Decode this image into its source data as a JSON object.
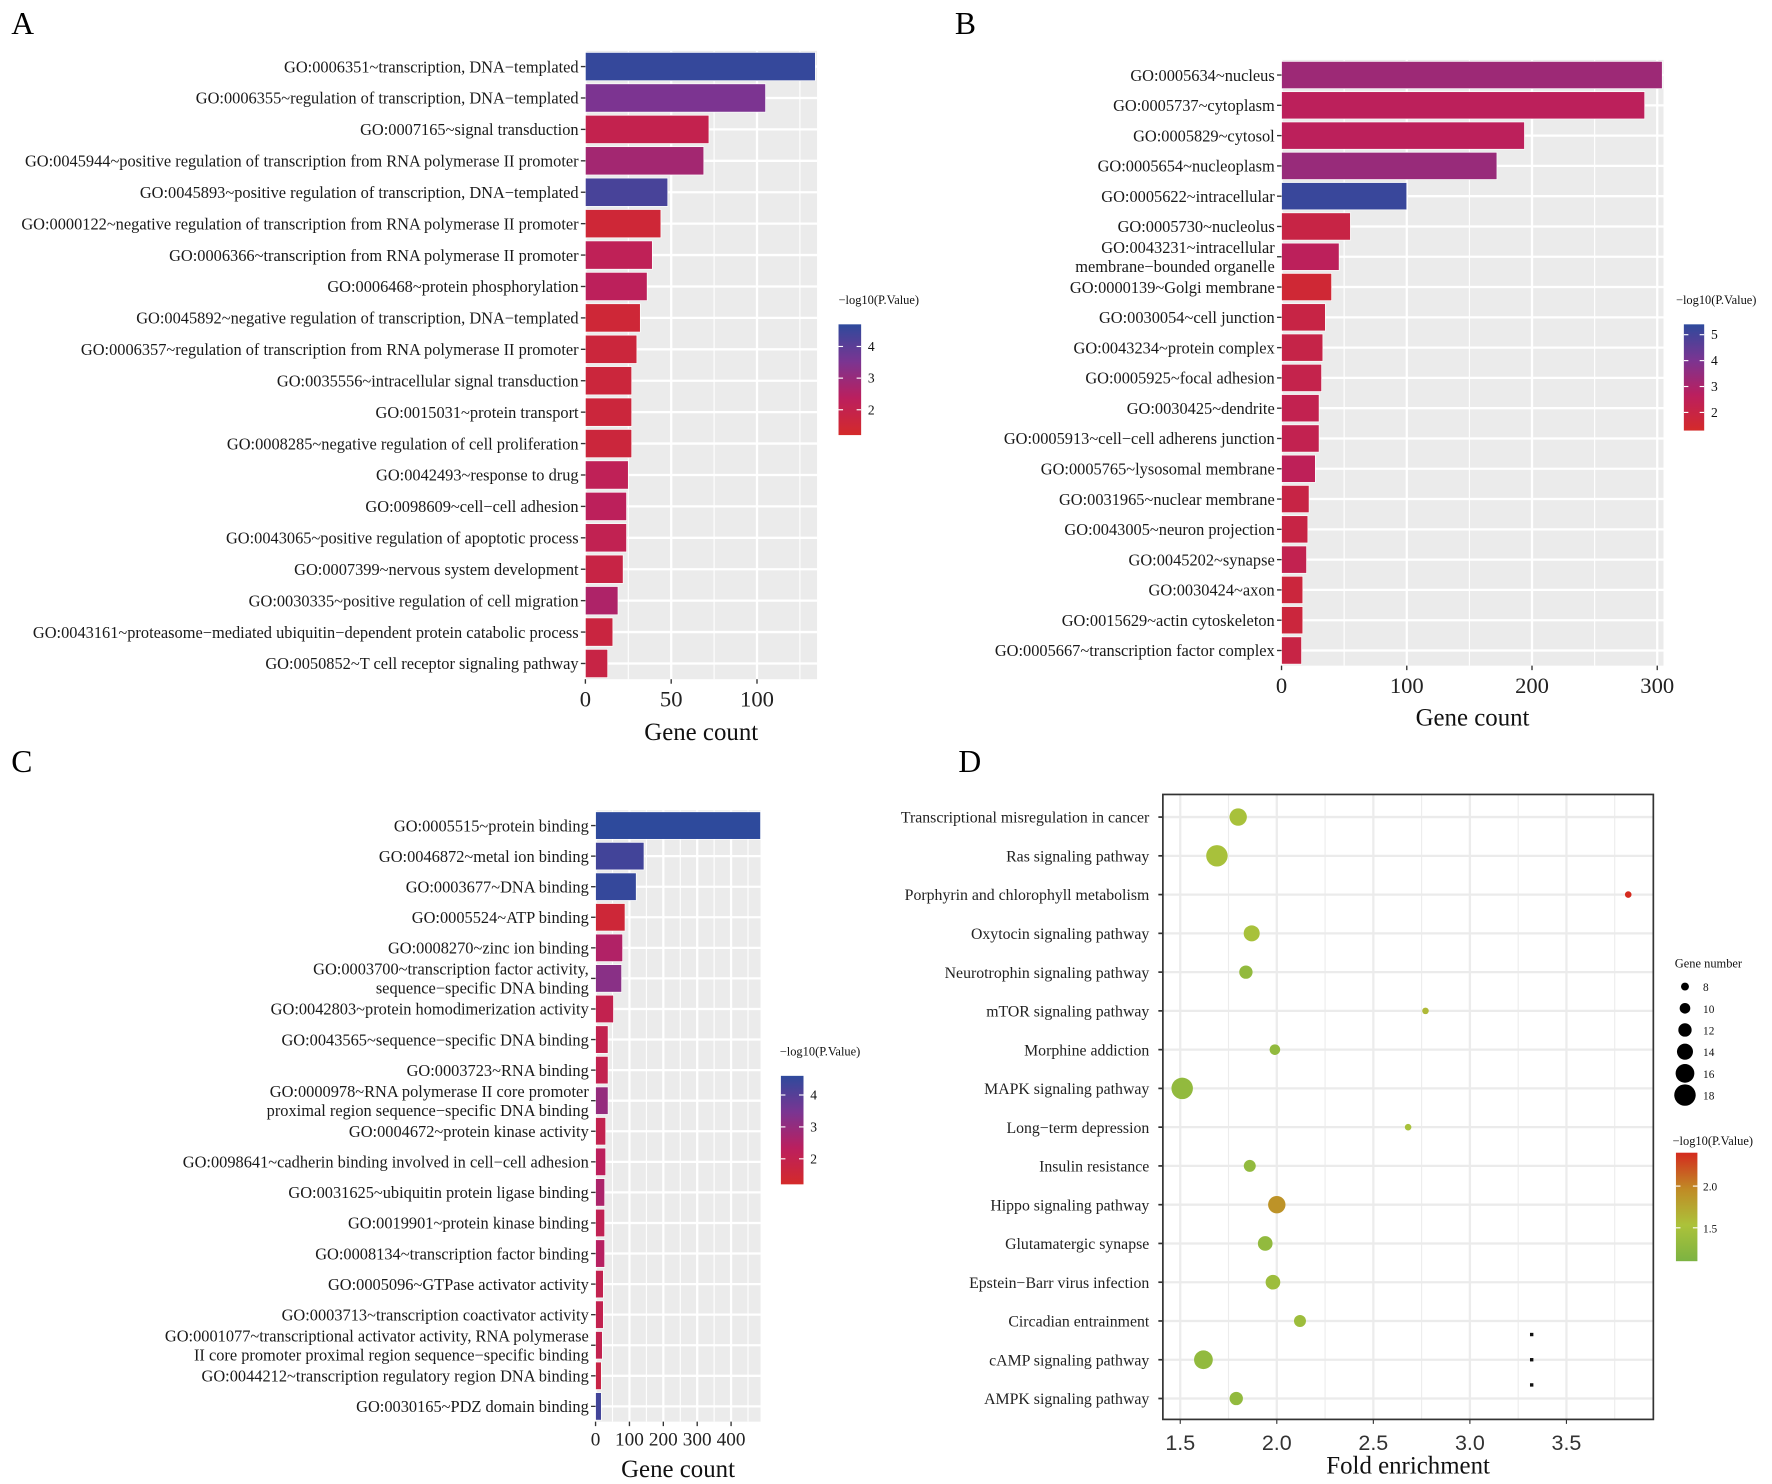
{
  "panel_letters": [
    "A",
    "B",
    "C",
    "D"
  ],
  "chart_data": [
    {
      "panel": "A",
      "type": "bar",
      "orientation": "horizontal",
      "xlabel": "Gene count",
      "xlim": [
        0,
        135
      ],
      "xticks": [
        0,
        50,
        100
      ],
      "legend_title": "−log10(P.Value)",
      "legend_ticks": [
        4,
        3,
        2
      ],
      "color_range": [
        1.2,
        4.7
      ],
      "categories": [
        [
          "GO:0006351~transcription, DNA−templated"
        ],
        [
          "GO:0006355~regulation of transcription, DNA−templated"
        ],
        [
          "GO:0007165~signal transduction"
        ],
        [
          "GO:0045944~positive regulation of transcription from RNA polymerase II promoter"
        ],
        [
          "GO:0045893~positive regulation of transcription, DNA−templated"
        ],
        [
          "GO:0000122~negative regulation of transcription from RNA polymerase II promoter"
        ],
        [
          "GO:0006366~transcription from RNA polymerase II promoter"
        ],
        [
          "GO:0006468~protein phosphorylation"
        ],
        [
          "GO:0045892~negative regulation of transcription, DNA−templated"
        ],
        [
          "GO:0006357~regulation of transcription from RNA polymerase II promoter"
        ],
        [
          "GO:0035556~intracellular signal transduction"
        ],
        [
          "GO:0015031~protein transport"
        ],
        [
          "GO:0008285~negative regulation of cell proliferation"
        ],
        [
          "GO:0042493~response to drug"
        ],
        [
          "GO:0098609~cell−cell adhesion"
        ],
        [
          "GO:0043065~positive regulation of apoptotic process"
        ],
        [
          "GO:0007399~nervous system development"
        ],
        [
          "GO:0030335~positive regulation of cell migration"
        ],
        [
          "GO:0043161~proteasome−mediated ubiquitin−dependent protein catabolic process"
        ],
        [
          "GO:0050852~T cell receptor signaling pathway"
        ]
      ],
      "values": [
        134,
        105,
        72,
        69,
        48,
        44,
        39,
        36,
        32,
        30,
        27,
        27,
        27,
        25,
        24,
        24,
        22,
        19,
        16,
        13
      ],
      "neglog10p": [
        4.6,
        3.5,
        2.0,
        2.8,
        4.3,
        1.5,
        2.2,
        2.3,
        1.5,
        1.6,
        1.6,
        1.6,
        1.6,
        2.2,
        2.3,
        2.1,
        1.8,
        2.6,
        1.7,
        1.8
      ]
    },
    {
      "panel": "B",
      "type": "bar",
      "orientation": "horizontal",
      "xlabel": "Gene count",
      "xlim": [
        0,
        305
      ],
      "xticks": [
        0,
        100,
        200,
        300
      ],
      "legend_title": "−log10(P.Value)",
      "legend_ticks": [
        5,
        4,
        3,
        2
      ],
      "color_range": [
        1.3,
        5.4
      ],
      "categories": [
        [
          "GO:0005634~nucleus"
        ],
        [
          "GO:0005737~cytoplasm"
        ],
        [
          "GO:0005829~cytosol"
        ],
        [
          "GO:0005654~nucleoplasm"
        ],
        [
          "GO:0005622~intracellular"
        ],
        [
          "GO:0005730~nucleolus"
        ],
        [
          "GO:0043231~intracellular",
          "membrane−bounded organelle"
        ],
        [
          "GO:0000139~Golgi membrane"
        ],
        [
          "GO:0030054~cell junction"
        ],
        [
          "GO:0043234~protein complex"
        ],
        [
          "GO:0005925~focal adhesion"
        ],
        [
          "GO:0030425~dendrite"
        ],
        [
          "GO:0005913~cell−cell adherens junction"
        ],
        [
          "GO:0005765~lysosomal membrane"
        ],
        [
          "GO:0031965~nuclear membrane"
        ],
        [
          "GO:0043005~neuron projection"
        ],
        [
          "GO:0045202~synapse"
        ],
        [
          "GO:0030424~axon"
        ],
        [
          "GO:0015629~actin cytoskeleton"
        ],
        [
          "GO:0005667~transcription factor complex"
        ]
      ],
      "values": [
        304,
        290,
        194,
        172,
        100,
        55,
        46,
        40,
        35,
        33,
        32,
        30,
        30,
        27,
        22,
        21,
        20,
        17,
        17,
        16
      ],
      "neglog10p": [
        3.3,
        2.6,
        2.6,
        3.4,
        5.2,
        2.0,
        2.6,
        1.6,
        2.0,
        2.1,
        2.2,
        2.3,
        2.3,
        2.5,
        2.0,
        2.0,
        2.3,
        1.8,
        1.8,
        2.0
      ]
    },
    {
      "panel": "C",
      "type": "bar",
      "orientation": "horizontal",
      "xlabel": "Gene count",
      "xlim": [
        0,
        487
      ],
      "xticks": [
        0,
        100,
        200,
        300,
        400
      ],
      "legend_title": "−log10(P.Value)",
      "legend_ticks": [
        4,
        3,
        2
      ],
      "color_range": [
        1.2,
        4.6
      ],
      "categories": [
        [
          "GO:0005515~protein binding"
        ],
        [
          "GO:0046872~metal ion binding"
        ],
        [
          "GO:0003677~DNA binding"
        ],
        [
          "GO:0005524~ATP binding"
        ],
        [
          "GO:0008270~zinc ion binding"
        ],
        [
          "GO:0003700~transcription factor activity,",
          "sequence−specific DNA binding"
        ],
        [
          "GO:0042803~protein homodimerization activity"
        ],
        [
          "GO:0043565~sequence−specific DNA binding"
        ],
        [
          "GO:0003723~RNA binding"
        ],
        [
          "GO:0000978~RNA polymerase II core promoter",
          "proximal region sequence−specific DNA binding"
        ],
        [
          "GO:0004672~protein kinase activity"
        ],
        [
          "GO:0098641~cadherin binding involved in cell−cell adhesion"
        ],
        [
          "GO:0031625~ubiquitin protein ligase binding"
        ],
        [
          "GO:0019901~protein kinase binding"
        ],
        [
          "GO:0008134~transcription factor binding"
        ],
        [
          "GO:0005096~GTPase activator activity"
        ],
        [
          "GO:0003713~transcription coactivator activity"
        ],
        [
          "GO:0001077~transcriptional activator activity, RNA polymerase",
          "II core promoter proximal region sequence−specific binding"
        ],
        [
          "GO:0044212~transcription regulatory region DNA binding"
        ],
        [
          "GO:0030165~PDZ domain binding"
        ]
      ],
      "values": [
        487,
        143,
        120,
        87,
        80,
        77,
        53,
        37,
        37,
        37,
        30,
        30,
        27,
        27,
        27,
        23,
        23,
        20,
        17,
        17
      ],
      "neglog10p": [
        4.6,
        4.3,
        4.5,
        1.5,
        2.5,
        3.2,
        2.0,
        2.0,
        2.0,
        3.0,
        2.0,
        2.3,
        2.6,
        2.1,
        2.4,
        2.0,
        2.0,
        2.0,
        1.8,
        4.3
      ]
    },
    {
      "panel": "D",
      "type": "scatter",
      "xlabel": "Fold enrichment",
      "xlim": [
        1.41,
        3.95
      ],
      "xticks": [
        1.5,
        2.0,
        2.5,
        3.0,
        3.5
      ],
      "size_legend_title": "Gene number",
      "size_legend_values": [
        8,
        10,
        12,
        14,
        16,
        18
      ],
      "color_legend_title": "−log10(P.Value)",
      "color_legend_ticks": [
        2.0,
        1.5
      ],
      "color_range": [
        1.1,
        2.4
      ],
      "categories": [
        "Transcriptional misregulation in cancer",
        "Ras signaling pathway",
        "Porphyrin and chlorophyll metabolism",
        "Oxytocin signaling pathway",
        "Neurotrophin signaling pathway",
        "mTOR signaling pathway",
        "Morphine addiction",
        "MAPK signaling pathway",
        "Long−term depression",
        "Insulin resistance",
        "Hippo signaling pathway",
        "Glutamatergic synapse",
        "Epstein−Barr virus infection",
        "Circadian entrainment",
        "cAMP signaling pathway",
        "AMPK signaling pathway"
      ],
      "fold_enrichment": [
        1.8,
        1.69,
        3.82,
        1.87,
        1.84,
        2.77,
        1.99,
        1.51,
        2.68,
        1.86,
        2.0,
        1.94,
        1.98,
        2.12,
        1.62,
        1.79
      ],
      "gene_number": [
        15,
        18,
        7,
        14,
        12,
        7,
        10,
        18,
        7,
        11,
        15,
        13,
        13,
        11,
        16,
        12
      ],
      "neglog10p": [
        1.5,
        1.5,
        2.4,
        1.5,
        1.3,
        1.6,
        1.3,
        1.3,
        1.5,
        1.3,
        1.9,
        1.3,
        1.4,
        1.4,
        1.3,
        1.3
      ],
      "stray_marks_x": 3.32,
      "stray_marks_rows": [
        13.35,
        14.0,
        14.65
      ]
    }
  ]
}
